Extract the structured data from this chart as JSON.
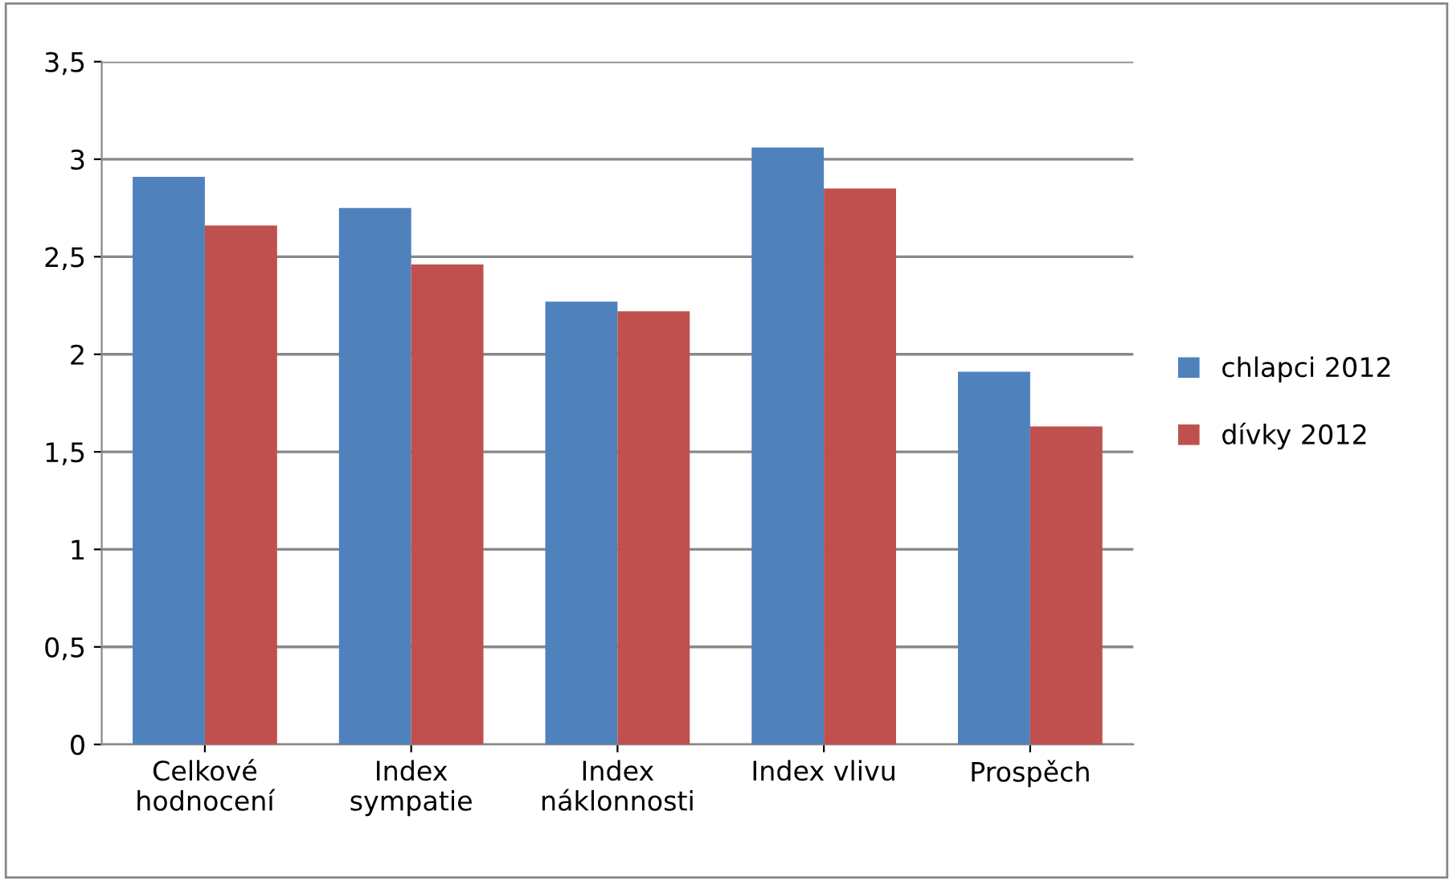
{
  "chart_data": {
    "type": "bar",
    "categories": [
      "Celkové\nhodnocení",
      "Index\nsympatie",
      "Index\nnáklonnosti",
      "Index vlivu",
      "Prospěch"
    ],
    "series": [
      {
        "name": "chlapci 2012",
        "color": "#4f81bd",
        "values": [
          2.91,
          2.75,
          2.27,
          3.06,
          1.91
        ]
      },
      {
        "name": "dívky 2012",
        "color": "#c0504d",
        "values": [
          2.66,
          2.46,
          2.22,
          2.85,
          1.63
        ]
      }
    ],
    "ylim": [
      0,
      3.5
    ],
    "yticks": [
      0,
      {
        "value": 0.5,
        "label": "0,5"
      },
      1,
      {
        "value": 1.5,
        "label": "1,5"
      },
      2,
      {
        "value": 2.5,
        "label": "2,5"
      },
      3,
      {
        "value": 3.5,
        "label": "3,5"
      }
    ],
    "grid": "y",
    "legend": "right"
  }
}
